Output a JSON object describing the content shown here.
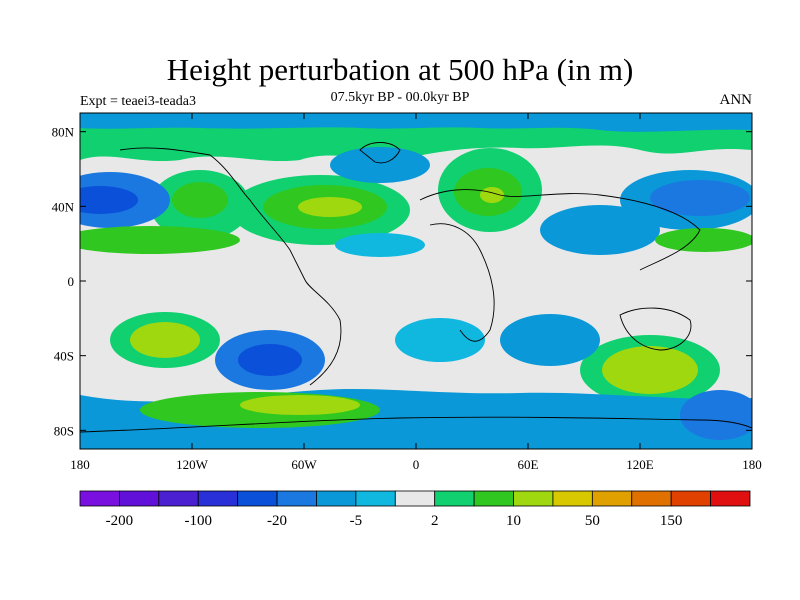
{
  "title": "Height perturbation at 500 hPa (in m)",
  "left_label": "Expt = teaei3-teada3",
  "center_label": "07.5kyr BP - 00.0kyr BP",
  "right_label": "ANN",
  "map": {
    "y_ticks": [
      {
        "label": "80N",
        "lat": 80
      },
      {
        "label": "40N",
        "lat": 40
      },
      {
        "label": "0",
        "lat": 0
      },
      {
        "label": "40S",
        "lat": -40
      },
      {
        "label": "80S",
        "lat": -80
      }
    ],
    "x_ticks": [
      {
        "label": "180",
        "lon": -180
      },
      {
        "label": "120W",
        "lon": -120
      },
      {
        "label": "60W",
        "lon": -60
      },
      {
        "label": "0",
        "lon": 0
      },
      {
        "label": "60E",
        "lon": 60
      },
      {
        "label": "120E",
        "lon": 120
      },
      {
        "label": "180",
        "lon": 180
      }
    ],
    "lat_range": [
      -90,
      90
    ],
    "lon_range": [
      -180,
      180
    ],
    "background_color": "#e8e8e8"
  },
  "colorbar": {
    "colors": [
      "#7a10e0",
      "#6010d8",
      "#4a20d0",
      "#2a30d8",
      "#0a50d8",
      "#1a78e0",
      "#0a98d8",
      "#10b8e0",
      "#e8e8e8",
      "#10d070",
      "#30c820",
      "#a0d810",
      "#d8c800",
      "#e0a000",
      "#e07000",
      "#e04000",
      "#e01010"
    ],
    "labels": [
      {
        "text": "-200",
        "boundary": 1
      },
      {
        "text": "-100",
        "boundary": 3
      },
      {
        "text": "-20",
        "boundary": 5
      },
      {
        "text": "-5",
        "boundary": 7
      },
      {
        "text": "2",
        "boundary": 9
      },
      {
        "text": "10",
        "boundary": 11
      },
      {
        "text": "50",
        "boundary": 13
      },
      {
        "text": "150",
        "boundary": 15
      }
    ]
  }
}
